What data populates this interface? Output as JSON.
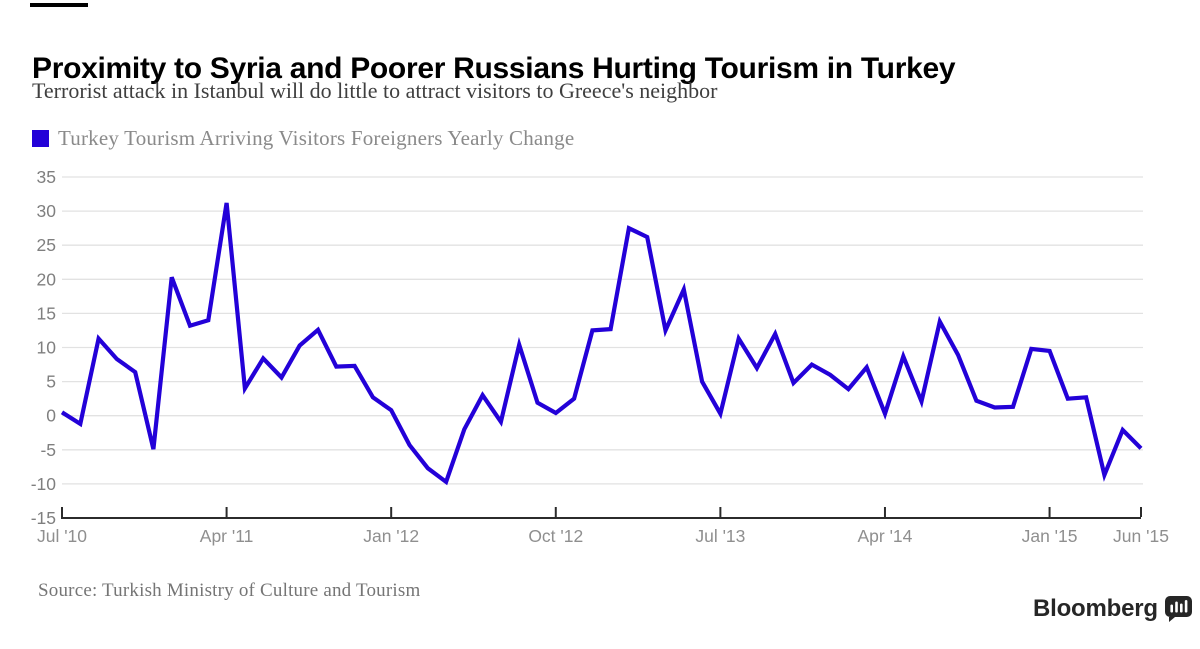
{
  "page": {
    "title": "Proximity to Syria and Poorer Russians Hurting Tourism in Turkey",
    "subtitle": "Terrorist attack in Istanbul will do little to attract visitors to Greece's neighbor",
    "source": "Source: Turkish Ministry of Culture and Tourism",
    "logo_text": "Bloomberg"
  },
  "legend": {
    "swatch_color": "#2301d8",
    "label": "Turkey Tourism Arriving Visitors Foreigners Yearly Change"
  },
  "chart_data": {
    "type": "line",
    "title": "Turkey Tourism Arriving Visitors Foreigners Yearly Change",
    "xlabel": "",
    "ylabel": "",
    "ylim": [
      -15,
      35
    ],
    "yticks": [
      35,
      30,
      25,
      20,
      15,
      10,
      5,
      0,
      -5,
      -10,
      -15
    ],
    "grid": "horizontal",
    "legend_position": "top-left",
    "colors": {
      "line": "#2301d8",
      "gridline": "#e2e2e2",
      "axis": "#2b2b2b",
      "ytick_label": "#7f7f7f",
      "xtick_label": "#8f8f8f"
    },
    "xticks": [
      {
        "label": "Jul '10",
        "index": 0
      },
      {
        "label": "Apr '11",
        "index": 9
      },
      {
        "label": "Jan '12",
        "index": 18
      },
      {
        "label": "Oct '12",
        "index": 27
      },
      {
        "label": "Jul '13",
        "index": 36
      },
      {
        "label": "Apr '14",
        "index": 45
      },
      {
        "label": "Jan '15",
        "index": 54
      },
      {
        "label": "Jun '15",
        "index": 59
      }
    ],
    "series": [
      {
        "name": "Turkey Tourism Arriving Visitors Foreigners Yearly Change",
        "color": "#2301d8",
        "x": [
          "2010-07",
          "2010-08",
          "2010-09",
          "2010-10",
          "2010-11",
          "2010-12",
          "2011-01",
          "2011-02",
          "2011-03",
          "2011-04",
          "2011-05",
          "2011-06",
          "2011-07",
          "2011-08",
          "2011-09",
          "2011-10",
          "2011-11",
          "2011-12",
          "2012-01",
          "2012-02",
          "2012-03",
          "2012-04",
          "2012-05",
          "2012-06",
          "2012-07",
          "2012-08",
          "2012-09",
          "2012-10",
          "2012-11",
          "2012-12",
          "2013-01",
          "2013-02",
          "2013-03",
          "2013-04",
          "2013-05",
          "2013-06",
          "2013-07",
          "2013-08",
          "2013-09",
          "2013-10",
          "2013-11",
          "2013-12",
          "2014-01",
          "2014-02",
          "2014-03",
          "2014-04",
          "2014-05",
          "2014-06",
          "2014-07",
          "2014-08",
          "2014-09",
          "2014-10",
          "2014-11",
          "2014-12",
          "2015-01",
          "2015-02",
          "2015-03",
          "2015-04",
          "2015-05",
          "2015-06"
        ],
        "values": [
          0.5,
          -1.2,
          11.3,
          8.3,
          6.4,
          -4.9,
          20.3,
          13.2,
          14.0,
          31.2,
          4.0,
          8.4,
          5.6,
          10.3,
          12.6,
          7.2,
          7.3,
          2.7,
          0.8,
          -4.3,
          -7.7,
          -9.7,
          -2.0,
          3.0,
          -0.9,
          10.4,
          1.9,
          0.4,
          2.5,
          12.5,
          12.7,
          27.5,
          26.2,
          12.5,
          18.5,
          5.0,
          0.3,
          11.3,
          7.0,
          12.0,
          4.8,
          7.5,
          6.0,
          3.9,
          7.1,
          0.3,
          8.7,
          2.1,
          13.8,
          8.9,
          2.2,
          1.2,
          1.3,
          9.8,
          9.5,
          2.5,
          2.7,
          -8.7,
          -2.1,
          -4.8
        ]
      }
    ]
  }
}
